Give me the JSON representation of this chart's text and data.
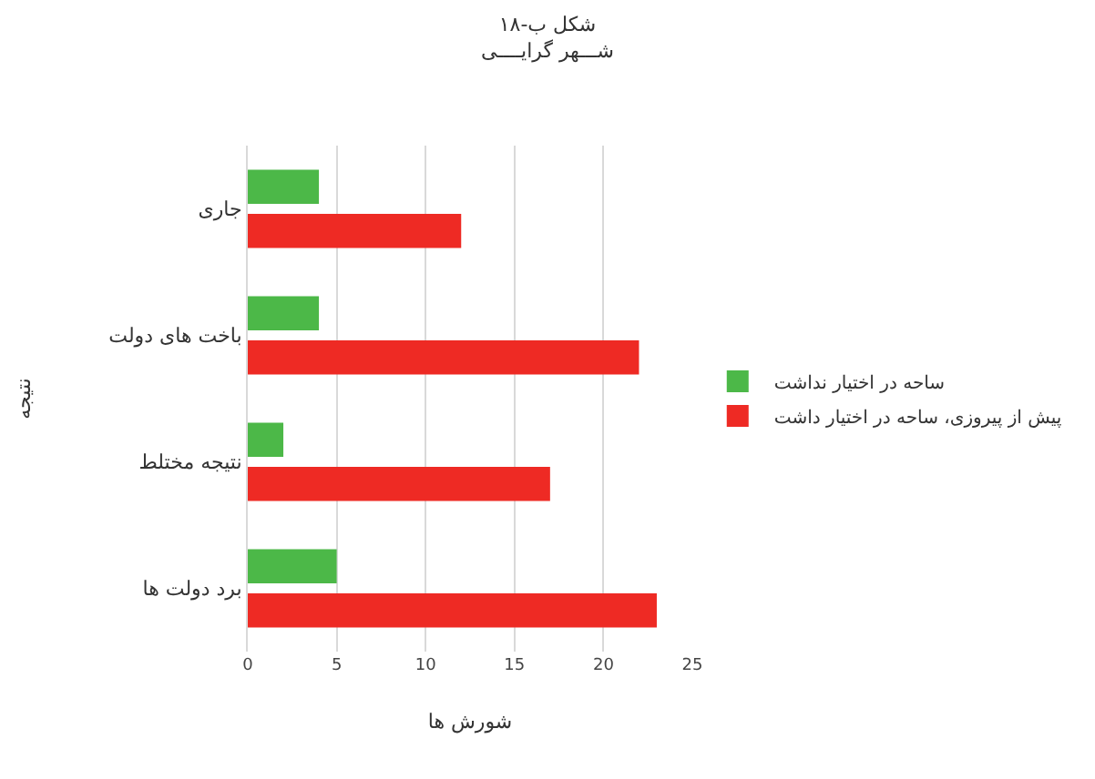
{
  "chart_data": {
    "type": "bar",
    "orientation": "horizontal",
    "title": "شکل ب-۱۸",
    "subtitle": "شـــهر گرایــــی",
    "xlabel": "شورش ها",
    "ylabel": "نتیجه",
    "categories": [
      "جاری",
      "باخت های دولت",
      "نتیجه مختلط",
      "برد دولت ها"
    ],
    "series": [
      {
        "name": "ساحه در اختیار نداشت",
        "color": "#4cb848",
        "values": [
          4,
          4,
          2,
          5
        ]
      },
      {
        "name": "پیش از پیروزی، ساحه در اختیار داشت",
        "color": "#ee2a24",
        "values": [
          12,
          22,
          17,
          23
        ]
      }
    ],
    "xlim": [
      0,
      25
    ],
    "xticks": [
      0,
      5,
      10,
      15,
      20,
      25
    ],
    "grid": "x",
    "legend": "right"
  }
}
